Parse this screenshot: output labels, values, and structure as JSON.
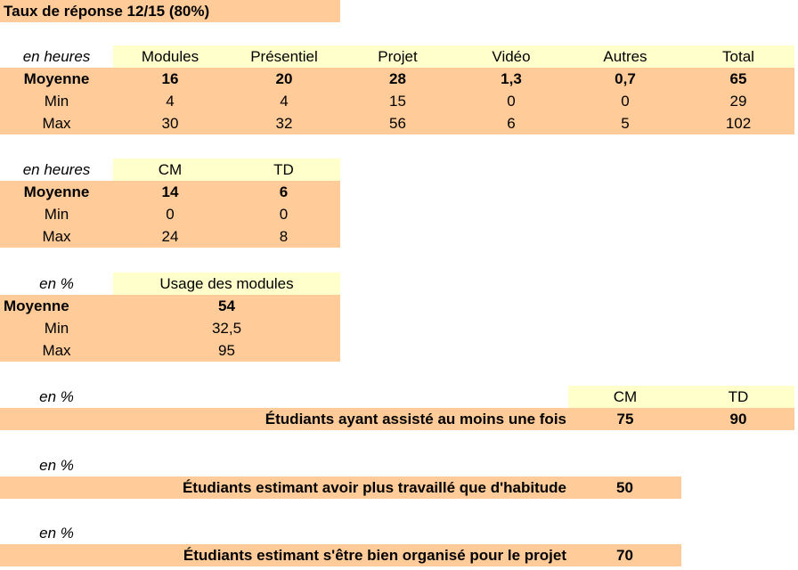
{
  "title": "Taux de réponse 12/15 (80%)",
  "table1": {
    "unit": "en heures",
    "headers": [
      "Modules",
      "Présentiel",
      "Projet",
      "Vidéo",
      "Autres",
      "Total"
    ],
    "rows": [
      {
        "label": "Moyenne",
        "values": [
          "16",
          "20",
          "28",
          "1,3",
          "0,7",
          "65"
        ]
      },
      {
        "label": "Min",
        "values": [
          "4",
          "4",
          "15",
          "0",
          "0",
          "29"
        ]
      },
      {
        "label": "Max",
        "values": [
          "30",
          "32",
          "56",
          "6",
          "5",
          "102"
        ]
      }
    ]
  },
  "table2": {
    "unit": "en heures",
    "headers": [
      "CM",
      "TD"
    ],
    "rows": [
      {
        "label": "Moyenne",
        "values": [
          "14",
          "6"
        ]
      },
      {
        "label": "Min",
        "values": [
          "0",
          "0"
        ]
      },
      {
        "label": "Max",
        "values": [
          "24",
          "8"
        ]
      }
    ]
  },
  "table3": {
    "unit": "en %",
    "header": "Usage des modules",
    "rows": [
      {
        "label": "Moyenne",
        "value": "54"
      },
      {
        "label": "Min",
        "value": "32,5"
      },
      {
        "label": "Max",
        "value": "95"
      }
    ]
  },
  "table4": {
    "unit": "en %",
    "headers": [
      "CM",
      "TD"
    ],
    "label": "Étudiants ayant assisté au moins une fois",
    "values": [
      "75",
      "90"
    ]
  },
  "table5": {
    "unit": "en %",
    "label": "Étudiants estimant avoir plus travaillé que d'habitude",
    "value": "50"
  },
  "table6": {
    "unit": "en %",
    "label": "Étudiants estimant s'être bien organisé pour le projet",
    "value": "70"
  },
  "colors": {
    "row_fill": "#ffcc99",
    "header_fill": "#ffffcc"
  }
}
